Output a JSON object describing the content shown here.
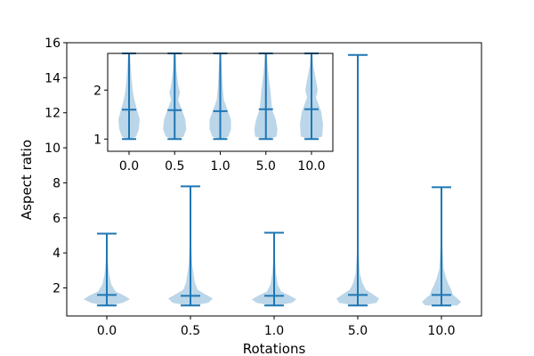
{
  "chart_data": [
    {
      "type": "violin",
      "name": "main",
      "xlabel": "Rotations",
      "ylabel": "Aspect ratio",
      "categories": [
        "0.0",
        "0.5",
        "1.0",
        "5.0",
        "10.0"
      ],
      "ylim": [
        0.4,
        16
      ],
      "yticks": [
        2,
        4,
        6,
        8,
        10,
        12,
        14,
        16
      ],
      "ytick_labels": [
        "2",
        "4",
        "6",
        "8",
        "10",
        "12",
        "14",
        "16"
      ],
      "series": [
        {
          "name": "0.0",
          "min": 1.0,
          "max": 5.1,
          "mean": 1.6
        },
        {
          "name": "0.5",
          "min": 1.0,
          "max": 7.8,
          "mean": 1.55
        },
        {
          "name": "1.0",
          "min": 1.0,
          "max": 5.15,
          "mean": 1.55
        },
        {
          "name": "5.0",
          "min": 1.0,
          "max": 15.3,
          "mean": 1.6
        },
        {
          "name": "10.0",
          "min": 1.0,
          "max": 7.75,
          "mean": 1.6
        }
      ]
    },
    {
      "type": "violin",
      "name": "inset",
      "xlabel": "",
      "ylabel": "",
      "categories": [
        "0.0",
        "0.5",
        "1.0",
        "5.0",
        "10.0"
      ],
      "ylim": [
        0.75,
        2.75
      ],
      "yticks": [
        1,
        2
      ],
      "ytick_labels": [
        "1",
        "2"
      ],
      "series": [
        {
          "name": "0.0",
          "min": 1.0,
          "max": 2.75,
          "mean": 1.6
        },
        {
          "name": "0.5",
          "min": 1.0,
          "max": 2.75,
          "mean": 1.59
        },
        {
          "name": "1.0",
          "min": 1.0,
          "max": 2.75,
          "mean": 1.57
        },
        {
          "name": "5.0",
          "min": 1.0,
          "max": 2.75,
          "mean": 1.61
        },
        {
          "name": "10.0",
          "min": 1.0,
          "max": 2.75,
          "mean": 1.61
        }
      ]
    }
  ],
  "colors": {
    "line": "#1f77b4",
    "body": "#1f77b4"
  }
}
